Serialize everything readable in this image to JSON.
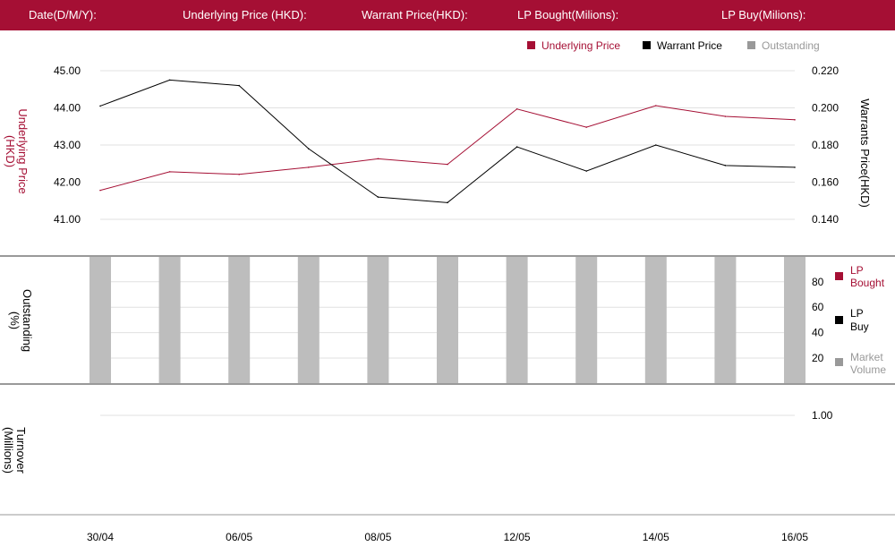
{
  "header": {
    "date_label": "Date(D/M/Y):",
    "underlying_label": "Underlying Price (HKD):",
    "warrant_label": "Warrant  Price(HKD):",
    "lp_bought_label": "LP Bought(Milions):",
    "lp_buy_label": "LP Buy(Milions):"
  },
  "colors": {
    "header_bg": "#a50f34",
    "underlying": "#a50f34",
    "warrant": "#000000",
    "outstanding": "#bdbdbd",
    "legend_gray": "#999999",
    "grid": "#e0e0e0"
  },
  "chart_data": [
    {
      "type": "line",
      "x": [
        "30/04",
        "",
        "06/05",
        "",
        "08/05",
        "",
        "12/05",
        "",
        "14/05",
        "",
        "16/05"
      ],
      "series": [
        {
          "name": "Underlying Price",
          "axis": "left",
          "values": [
            41.78,
            42.28,
            42.21,
            42.4,
            42.63,
            42.48,
            43.97,
            43.48,
            44.06,
            43.77,
            43.68
          ]
        },
        {
          "name": "Warrant  Price",
          "axis": "right",
          "values": [
            0.201,
            0.215,
            0.212,
            0.178,
            0.152,
            0.149,
            0.179,
            0.166,
            0.18,
            0.169,
            0.168
          ]
        }
      ],
      "legend": [
        "Underlying Price",
        "Warrant  Price",
        "Outstanding"
      ],
      "legend_position": "top-right",
      "ylabel": "Underlying Price (HKD)",
      "ylabel_right": "Warrants  Price(HKD)",
      "yticks": [
        "45.00",
        "44.00",
        "43.00",
        "42.00",
        "41.00"
      ],
      "yticks_right": [
        "0.220",
        "0.200",
        "0.180",
        "0.160",
        "0.140"
      ],
      "ylim": [
        41,
        45
      ],
      "ylim_right": [
        0.14,
        0.22
      ],
      "grid": true
    },
    {
      "type": "bar",
      "x": [
        "30/04",
        "",
        "06/05",
        "",
        "08/05",
        "",
        "12/05",
        "",
        "14/05",
        "",
        "16/05"
      ],
      "series": [
        {
          "name": "Outstanding",
          "values": [
            100,
            100,
            100,
            100,
            100,
            100,
            100,
            100,
            100,
            100,
            100
          ]
        }
      ],
      "legend": [
        "LP Bought",
        "LP Buy",
        "Market Volume"
      ],
      "legend_position": "right",
      "ylabel": "Outstanding (%)",
      "yticks": [
        "80",
        "60",
        "40",
        "20"
      ],
      "ylim": [
        0,
        100
      ],
      "grid": true
    },
    {
      "type": "bar",
      "x": [
        "30/04",
        "",
        "06/05",
        "",
        "08/05",
        "",
        "12/05",
        "",
        "14/05",
        "",
        "16/05"
      ],
      "series": [],
      "ylabel": "Turnover (Millions)",
      "yticks": [
        "1.00"
      ],
      "ylim": [
        0,
        1.2
      ],
      "grid": true
    }
  ],
  "xticks": [
    "30/04",
    "06/05",
    "08/05",
    "12/05",
    "14/05",
    "16/05"
  ],
  "panel2_legend": {
    "lp_bought": [
      "LP",
      "Bought"
    ],
    "lp_buy": [
      "LP",
      "Buy"
    ],
    "market_volume": [
      "Market",
      "Volume"
    ]
  },
  "panel1_ylabel_lines": [
    "Underlying Price",
    "(HKD)"
  ],
  "panel2_ylabel_lines": [
    "Outstanding",
    "(%)"
  ],
  "panel3_ylabel_lines": [
    "Turnover",
    "(Millions)"
  ]
}
